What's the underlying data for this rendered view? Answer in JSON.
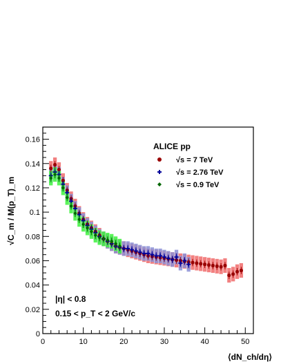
{
  "chart_data": {
    "type": "scatter",
    "title": "",
    "xlabel": "⟨dN_ch/dη⟩",
    "ylabel": "√C_m / M(p_T)_m",
    "xlim": [
      0,
      52
    ],
    "ylim": [
      0,
      0.17
    ],
    "x_ticks": [
      0,
      10,
      20,
      30,
      40,
      50
    ],
    "y_ticks": [
      0,
      0.02,
      0.04,
      0.06,
      0.08,
      0.1,
      0.12,
      0.14,
      0.16
    ],
    "x_tick_labels": [
      "0",
      "10",
      "20",
      "30",
      "40",
      "50"
    ],
    "y_tick_labels": [
      "0",
      "0.02",
      "0.04",
      "0.06",
      "0.08",
      "0.1",
      "0.12",
      "0.14",
      "0.16"
    ],
    "grid": false,
    "legend_position": "top-right",
    "legend_title": "ALICE pp",
    "annotations": [
      "|η| < 0.8",
      "0.15 < p_T < 2 GeV/c"
    ],
    "series": [
      {
        "name": "√s = 7 TeV",
        "color": "#990000",
        "band_color": "#f06b6b",
        "marker": "circle",
        "points": [
          [
            2,
            0.136
          ],
          [
            3,
            0.139
          ],
          [
            4,
            0.135
          ],
          [
            5,
            0.126
          ],
          [
            6,
            0.118
          ],
          [
            7,
            0.111
          ],
          [
            8,
            0.105
          ],
          [
            9,
            0.099
          ],
          [
            10,
            0.094
          ],
          [
            11,
            0.09
          ],
          [
            12,
            0.087
          ],
          [
            13,
            0.084
          ],
          [
            14,
            0.081
          ],
          [
            15,
            0.078
          ],
          [
            16,
            0.076
          ],
          [
            17,
            0.074
          ],
          [
            18,
            0.072
          ],
          [
            19,
            0.071
          ],
          [
            20,
            0.07
          ],
          [
            21,
            0.069
          ],
          [
            22,
            0.068
          ],
          [
            23,
            0.067
          ],
          [
            24,
            0.066
          ],
          [
            25,
            0.065
          ],
          [
            26,
            0.064
          ],
          [
            27,
            0.0635
          ],
          [
            28,
            0.063
          ],
          [
            29,
            0.0625
          ],
          [
            30,
            0.062
          ],
          [
            31,
            0.0615
          ],
          [
            32,
            0.061
          ],
          [
            33,
            0.0605
          ],
          [
            34,
            0.06
          ],
          [
            35,
            0.0595
          ],
          [
            36,
            0.059
          ],
          [
            37,
            0.0585
          ],
          [
            38,
            0.058
          ],
          [
            39,
            0.0575
          ],
          [
            40,
            0.057
          ],
          [
            41,
            0.0565
          ],
          [
            42,
            0.056
          ],
          [
            43,
            0.0555
          ],
          [
            44,
            0.055
          ],
          [
            45,
            0.056
          ],
          [
            46,
            0.048
          ],
          [
            47,
            0.049
          ],
          [
            48,
            0.051
          ],
          [
            49,
            0.052
          ]
        ]
      },
      {
        "name": "√s = 2.76 TeV",
        "color": "#000099",
        "band_color": "#8b8fd6",
        "marker": "cross",
        "points": [
          [
            2,
            0.13
          ],
          [
            3,
            0.133
          ],
          [
            4,
            0.131
          ],
          [
            5,
            0.123
          ],
          [
            6,
            0.116
          ],
          [
            7,
            0.109
          ],
          [
            8,
            0.103
          ],
          [
            9,
            0.098
          ],
          [
            10,
            0.093
          ],
          [
            11,
            0.089
          ],
          [
            12,
            0.086
          ],
          [
            13,
            0.083
          ],
          [
            14,
            0.08
          ],
          [
            15,
            0.078
          ],
          [
            16,
            0.076
          ],
          [
            17,
            0.074
          ],
          [
            18,
            0.072
          ],
          [
            19,
            0.071
          ],
          [
            20,
            0.07
          ],
          [
            21,
            0.07
          ],
          [
            22,
            0.069
          ],
          [
            23,
            0.068
          ],
          [
            24,
            0.067
          ],
          [
            25,
            0.066
          ],
          [
            26,
            0.066
          ],
          [
            27,
            0.065
          ],
          [
            28,
            0.064
          ],
          [
            29,
            0.064
          ],
          [
            30,
            0.063
          ],
          [
            31,
            0.062
          ],
          [
            32,
            0.061
          ],
          [
            33,
            0.063
          ],
          [
            34,
            0.058
          ],
          [
            35,
            0.06
          ],
          [
            36,
            0.057
          ]
        ]
      },
      {
        "name": "√s = 0.9 TeV",
        "color": "#006600",
        "band_color": "#3df23d",
        "marker": "diamond",
        "points": [
          [
            2,
            0.128
          ],
          [
            3,
            0.131
          ],
          [
            4,
            0.128
          ],
          [
            5,
            0.12
          ],
          [
            6,
            0.112
          ],
          [
            7,
            0.105
          ],
          [
            8,
            0.099
          ],
          [
            9,
            0.094
          ],
          [
            10,
            0.09
          ],
          [
            11,
            0.087
          ],
          [
            12,
            0.084
          ],
          [
            13,
            0.081
          ],
          [
            14,
            0.079
          ],
          [
            15,
            0.078
          ],
          [
            16,
            0.077
          ],
          [
            17,
            0.076
          ],
          [
            18,
            0.074
          ],
          [
            19,
            0.072
          ]
        ]
      }
    ]
  }
}
